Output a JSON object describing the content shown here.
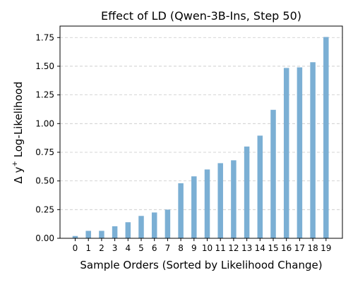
{
  "chart_data": {
    "type": "bar",
    "title": "Effect of LD (Qwen-3B-Ins, Step 50)",
    "xlabel": "Sample Orders (Sorted by Likelihood Change)",
    "ylabel_prefix": "Δ y",
    "ylabel_superscript": "+",
    "ylabel_suffix": " Log-Likelihood",
    "categories": [
      "0",
      "1",
      "2",
      "3",
      "4",
      "5",
      "6",
      "7",
      "8",
      "9",
      "10",
      "11",
      "12",
      "13",
      "14",
      "15",
      "16",
      "17",
      "18",
      "19"
    ],
    "values": [
      0.02,
      0.065,
      0.065,
      0.105,
      0.14,
      0.195,
      0.225,
      0.25,
      0.48,
      0.54,
      0.6,
      0.655,
      0.68,
      0.8,
      0.895,
      1.12,
      1.485,
      1.49,
      1.535,
      1.755
    ],
    "ylim": [
      0,
      1.85
    ],
    "yticks": [
      0.0,
      0.25,
      0.5,
      0.75,
      1.0,
      1.25,
      1.5,
      1.75
    ],
    "ytick_labels": [
      "0.00",
      "0.25",
      "0.50",
      "0.75",
      "1.00",
      "1.25",
      "1.50",
      "1.75"
    ],
    "grid": "y-dashed",
    "bar_color": "#7bafd4"
  }
}
